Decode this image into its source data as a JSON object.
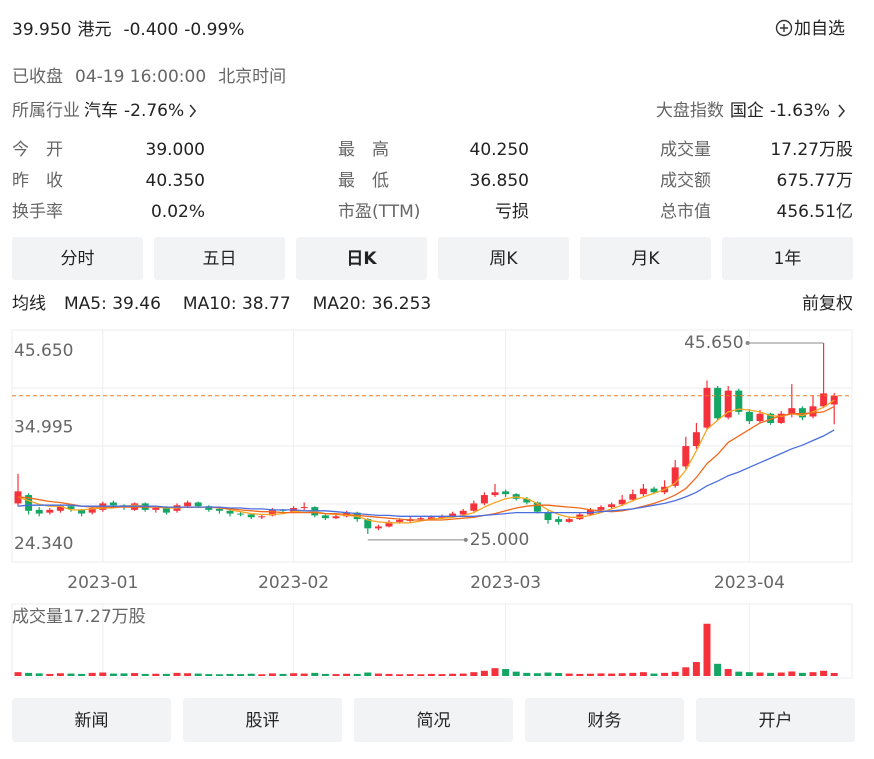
{
  "quote": {
    "price": "39.950",
    "currency": "港元",
    "change": "-0.400",
    "change_pct": "-0.99%",
    "color": "#1a9f5b",
    "watch": "加自选",
    "status": "已收盘",
    "time": "04-19 16:00:00",
    "timezone": "北京时间",
    "industry_label": "所属行业",
    "industry": "汽车",
    "industry_change": "-2.76%",
    "index_label": "大盘指数",
    "index": "国企",
    "index_change": "-1.63%"
  },
  "stats": [
    [
      {
        "label": "今　开",
        "value": "39.000",
        "color": "#1a9f5b"
      },
      {
        "label": "最　高",
        "value": "40.250",
        "color": "#1a9f5b"
      },
      {
        "label": "成交量",
        "value": "17.27万股",
        "color": "#222222"
      }
    ],
    [
      {
        "label": "昨　收",
        "value": "40.350",
        "color": "#222222"
      },
      {
        "label": "最　低",
        "value": "36.850",
        "color": "#1a9f5b"
      },
      {
        "label": "成交额",
        "value": "675.77万",
        "color": "#222222"
      }
    ],
    [
      {
        "label": "换手率",
        "value": "0.02%",
        "color": "#222222"
      },
      {
        "label": "市盈(TTM)",
        "value": "亏损",
        "color": "#222222"
      },
      {
        "label": "总市值",
        "value": "456.51亿",
        "color": "#222222"
      }
    ]
  ],
  "tabs": [
    "分时",
    "五日",
    "日K",
    "周K",
    "月K",
    "1年"
  ],
  "active_tab": 2,
  "buttons": [
    "新闻",
    "股评",
    "简况",
    "财务",
    "开户"
  ],
  "chart_data": {
    "type": "candlestick",
    "ma_title": "均线",
    "adjust": "前复权",
    "up_color": "#f5323c",
    "down_color": "#14a664",
    "last_line_color": "#f07a2a",
    "ylim": [
      24.34,
      45.65
    ],
    "yticks": [
      {
        "value": 45.65,
        "label": "45.650"
      },
      {
        "value": 34.995,
        "label": "34.995"
      },
      {
        "value": 24.34,
        "label": "24.340"
      }
    ],
    "high_label": "45.650",
    "low_label": "25.000",
    "categories": [
      null,
      null,
      null,
      null,
      null,
      null,
      null,
      null,
      "2023-01",
      null,
      null,
      null,
      null,
      null,
      null,
      null,
      null,
      null,
      null,
      null,
      null,
      null,
      null,
      null,
      null,
      null,
      "2023-02",
      null,
      null,
      null,
      null,
      null,
      null,
      null,
      null,
      null,
      null,
      null,
      null,
      null,
      null,
      null,
      null,
      null,
      null,
      null,
      "2023-03",
      null,
      null,
      null,
      null,
      null,
      null,
      null,
      null,
      null,
      null,
      null,
      null,
      null,
      null,
      null,
      null,
      null,
      null,
      null,
      null,
      null,
      null,
      "2023-04",
      null,
      null,
      null,
      null,
      null,
      null,
      null,
      null
    ],
    "candles": [
      [
        28.3,
        31.5,
        28.0,
        29.6
      ],
      [
        29.2,
        29.4,
        27.1,
        27.5
      ],
      [
        27.6,
        27.9,
        26.9,
        27.2
      ],
      [
        27.3,
        27.8,
        27.1,
        27.6
      ],
      [
        27.5,
        28.2,
        27.3,
        28.0
      ],
      [
        28.0,
        28.2,
        27.4,
        27.7
      ],
      [
        27.6,
        27.7,
        26.9,
        27.2
      ],
      [
        27.3,
        28.0,
        27.1,
        27.8
      ],
      [
        27.6,
        28.5,
        27.4,
        28.3
      ],
      [
        28.4,
        28.6,
        27.9,
        28.1
      ],
      [
        28.1,
        28.2,
        27.6,
        27.9
      ],
      [
        27.6,
        28.4,
        27.5,
        28.3
      ],
      [
        28.3,
        28.4,
        27.4,
        27.6
      ],
      [
        27.6,
        27.9,
        27.3,
        27.8
      ],
      [
        27.8,
        28.0,
        27.1,
        27.3
      ],
      [
        27.5,
        28.3,
        27.3,
        28.1
      ],
      [
        28.0,
        28.6,
        27.8,
        28.4
      ],
      [
        28.4,
        28.5,
        27.8,
        28.0
      ],
      [
        28.0,
        28.1,
        27.4,
        27.6
      ],
      [
        27.7,
        27.8,
        27.2,
        27.5
      ],
      [
        27.5,
        27.6,
        26.9,
        27.2
      ],
      [
        27.2,
        27.4,
        26.9,
        27.1
      ],
      [
        27.1,
        27.2,
        26.6,
        26.8
      ],
      [
        26.8,
        27.1,
        26.6,
        26.9
      ],
      [
        27.0,
        27.8,
        26.9,
        27.6
      ],
      [
        27.6,
        27.7,
        27.2,
        27.5
      ],
      [
        27.4,
        28.0,
        27.3,
        27.8
      ],
      [
        27.8,
        28.4,
        27.6,
        27.9
      ],
      [
        27.9,
        28.0,
        26.8,
        27.0
      ],
      [
        27.0,
        27.1,
        26.5,
        26.7
      ],
      [
        26.7,
        27.1,
        26.6,
        26.9
      ],
      [
        26.9,
        27.5,
        26.8,
        27.3
      ],
      [
        27.3,
        27.4,
        26.3,
        26.6
      ],
      [
        26.6,
        26.7,
        25.0,
        25.6
      ],
      [
        25.6,
        26.0,
        25.4,
        25.8
      ],
      [
        25.8,
        26.5,
        25.7,
        26.3
      ],
      [
        26.3,
        26.7,
        26.1,
        26.5
      ],
      [
        26.4,
        26.9,
        26.3,
        26.6
      ],
      [
        26.6,
        26.9,
        26.4,
        26.7
      ],
      [
        26.6,
        27.0,
        26.5,
        26.8
      ],
      [
        26.7,
        27.1,
        26.6,
        26.9
      ],
      [
        26.9,
        27.4,
        26.8,
        27.2
      ],
      [
        27.1,
        27.7,
        27.0,
        27.5
      ],
      [
        27.5,
        28.6,
        27.4,
        28.3
      ],
      [
        28.3,
        29.5,
        28.1,
        29.2
      ],
      [
        29.2,
        30.4,
        29.0,
        29.5
      ],
      [
        29.6,
        29.8,
        29.0,
        29.3
      ],
      [
        29.3,
        29.4,
        28.6,
        28.8
      ],
      [
        28.8,
        29.0,
        28.2,
        28.4
      ],
      [
        28.4,
        28.5,
        27.2,
        27.4
      ],
      [
        27.3,
        27.5,
        26.1,
        26.5
      ],
      [
        26.6,
        26.9,
        26.0,
        26.3
      ],
      [
        26.3,
        26.9,
        26.2,
        26.6
      ],
      [
        26.6,
        27.3,
        26.5,
        27.1
      ],
      [
        27.1,
        27.8,
        27.0,
        27.6
      ],
      [
        27.6,
        28.1,
        27.5,
        27.9
      ],
      [
        27.9,
        28.4,
        27.7,
        28.2
      ],
      [
        28.2,
        29.2,
        28.0,
        28.7
      ],
      [
        28.7,
        29.8,
        28.5,
        29.3
      ],
      [
        29.3,
        30.4,
        29.1,
        29.9
      ],
      [
        29.9,
        30.1,
        29.3,
        29.5
      ],
      [
        29.5,
        30.8,
        29.3,
        30.1
      ],
      [
        30.2,
        33.0,
        30.0,
        32.2
      ],
      [
        32.3,
        35.5,
        32.0,
        34.5
      ],
      [
        34.5,
        37.0,
        34.2,
        36.0
      ],
      [
        36.5,
        41.6,
        36.3,
        40.8
      ],
      [
        40.8,
        41.0,
        37.2,
        37.5
      ],
      [
        37.6,
        41.0,
        37.4,
        40.5
      ],
      [
        40.5,
        40.7,
        37.9,
        38.2
      ],
      [
        38.2,
        38.5,
        36.9,
        37.2
      ],
      [
        37.2,
        38.4,
        37.0,
        38.0
      ],
      [
        38.0,
        38.1,
        36.8,
        37.0
      ],
      [
        37.0,
        38.3,
        36.9,
        38.0
      ],
      [
        38.0,
        41.2,
        37.6,
        38.6
      ],
      [
        38.6,
        38.8,
        37.3,
        37.6
      ],
      [
        37.7,
        40.0,
        37.5,
        38.8
      ],
      [
        38.8,
        45.65,
        38.6,
        40.2
      ],
      [
        39.0,
        40.25,
        36.85,
        39.95
      ]
    ],
    "ma": [
      {
        "name": "MA5: 39.46",
        "color": "#f5a623",
        "values": [
          29.0,
          28.6,
          28.2,
          28.0,
          28.0,
          27.6,
          27.6,
          27.7,
          27.8,
          27.8,
          28.0,
          28.1,
          28.0,
          27.9,
          27.8,
          27.8,
          27.9,
          27.9,
          27.9,
          27.9,
          27.6,
          27.4,
          27.2,
          27.1,
          27.1,
          27.2,
          27.4,
          27.5,
          27.4,
          27.2,
          27.1,
          27.0,
          26.9,
          26.5,
          26.3,
          26.2,
          26.2,
          26.2,
          26.4,
          26.6,
          26.7,
          26.8,
          27.0,
          27.3,
          27.9,
          28.4,
          28.8,
          29.0,
          28.8,
          28.3,
          27.6,
          27.1,
          26.8,
          26.8,
          27.0,
          27.3,
          27.7,
          28.1,
          28.6,
          29.0,
          29.4,
          29.8,
          30.5,
          31.9,
          34.0,
          36.3,
          37.3,
          38.2,
          38.5,
          38.4,
          38.2,
          37.8,
          37.7,
          38.0,
          37.8,
          38.2,
          38.7,
          39.46
        ]
      },
      {
        "name": "MA10: 38.77",
        "color": "#f06a1e",
        "values": [
          29.0,
          28.9,
          28.7,
          28.5,
          28.4,
          28.2,
          28.0,
          27.9,
          27.9,
          27.9,
          27.9,
          27.9,
          27.9,
          27.9,
          27.9,
          27.9,
          27.9,
          27.9,
          27.9,
          27.8,
          27.7,
          27.6,
          27.5,
          27.4,
          27.4,
          27.3,
          27.3,
          27.3,
          27.3,
          27.2,
          27.2,
          27.1,
          27.0,
          26.9,
          26.8,
          26.7,
          26.6,
          26.5,
          26.5,
          26.5,
          26.5,
          26.6,
          26.7,
          26.8,
          27.0,
          27.2,
          27.5,
          27.8,
          28.0,
          28.1,
          28.1,
          28.0,
          27.9,
          27.8,
          27.6,
          27.5,
          27.4,
          27.5,
          27.7,
          28.0,
          28.3,
          28.7,
          29.2,
          29.9,
          31.1,
          32.6,
          33.6,
          34.9,
          35.6,
          36.3,
          37.0,
          37.4,
          37.8,
          38.0,
          38.0,
          38.1,
          38.2,
          38.77
        ]
      },
      {
        "name": "MA20: 36.253",
        "color": "#4a6ee0",
        "values": [
          28.0,
          28.1,
          28.1,
          28.1,
          28.1,
          28.1,
          28.0,
          28.0,
          28.0,
          28.0,
          28.0,
          28.0,
          28.0,
          28.0,
          27.9,
          27.9,
          27.9,
          27.9,
          27.9,
          27.9,
          27.8,
          27.8,
          27.7,
          27.7,
          27.6,
          27.6,
          27.6,
          27.5,
          27.5,
          27.5,
          27.4,
          27.3,
          27.2,
          27.1,
          27.0,
          27.0,
          26.9,
          26.9,
          26.9,
          26.9,
          26.9,
          26.9,
          26.9,
          26.9,
          27.0,
          27.1,
          27.2,
          27.3,
          27.3,
          27.3,
          27.3,
          27.3,
          27.3,
          27.3,
          27.3,
          27.4,
          27.5,
          27.6,
          27.7,
          27.9,
          28.1,
          28.3,
          28.6,
          29.0,
          29.5,
          30.2,
          30.7,
          31.3,
          31.7,
          32.2,
          32.7,
          33.2,
          33.7,
          34.2,
          34.6,
          35.1,
          35.6,
          36.253
        ]
      }
    ],
    "volume_title": "成交量17.27万股",
    "volume_ylim": [
      0,
      310
    ],
    "volumes": [
      22,
      18,
      15,
      12,
      16,
      14,
      12,
      18,
      20,
      14,
      15,
      17,
      12,
      13,
      12,
      18,
      16,
      14,
      11,
      10,
      12,
      11,
      13,
      10,
      15,
      12,
      16,
      14,
      18,
      12,
      11,
      13,
      12,
      20,
      14,
      12,
      10,
      11,
      10,
      12,
      11,
      13,
      14,
      22,
      30,
      45,
      40,
      25,
      18,
      16,
      20,
      17,
      14,
      12,
      13,
      15,
      14,
      16,
      18,
      22,
      14,
      18,
      24,
      50,
      80,
      300,
      70,
      40,
      25,
      22,
      20,
      18,
      20,
      26,
      18,
      22,
      30,
      17.27
    ]
  }
}
